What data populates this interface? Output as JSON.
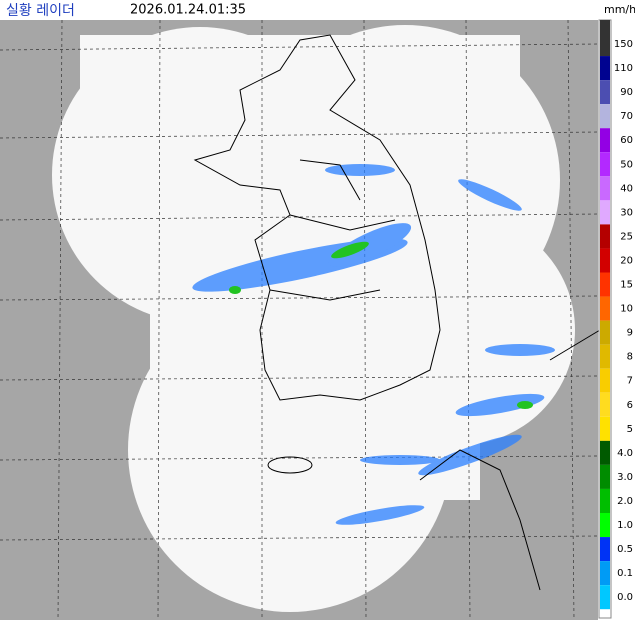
{
  "header": {
    "title": "실황 레이더",
    "timestamp": "2026.01.24.01:35",
    "unit": "mm/h"
  },
  "legend": [
    {
      "label": "150",
      "color": "#333333"
    },
    {
      "label": "110",
      "color": "#000390"
    },
    {
      "label": "90",
      "color": "#4c4eb1"
    },
    {
      "label": "70",
      "color": "#b3b4de"
    },
    {
      "label": "60",
      "color": "#9300e4"
    },
    {
      "label": "50",
      "color": "#b329ff"
    },
    {
      "label": "40",
      "color": "#c969ff"
    },
    {
      "label": "30",
      "color": "#e0a9ff"
    },
    {
      "label": "25",
      "color": "#b40000"
    },
    {
      "label": "20",
      "color": "#d20000"
    },
    {
      "label": "15",
      "color": "#ff3300"
    },
    {
      "label": "10",
      "color": "#ff6600"
    },
    {
      "label": "9",
      "color": "#ccaa00"
    },
    {
      "label": "8",
      "color": "#e0b900"
    },
    {
      "label": "7",
      "color": "#f9cd00"
    },
    {
      "label": "6",
      "color": "#ffdc1f"
    },
    {
      "label": "5",
      "color": "#ffe100"
    },
    {
      "label": "4.0",
      "color": "#005a00"
    },
    {
      "label": "3.0",
      "color": "#008c00"
    },
    {
      "label": "2.0",
      "color": "#00be00"
    },
    {
      "label": "1.0",
      "color": "#00ff00"
    },
    {
      "label": "0.5",
      "color": "#0033f5"
    },
    {
      "label": "0.1",
      "color": "#009bf5"
    },
    {
      "label": "0.0",
      "color": "#00c8ff"
    }
  ]
}
